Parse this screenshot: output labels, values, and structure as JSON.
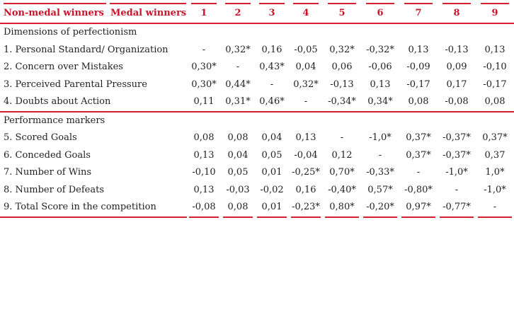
{
  "colors": {
    "header_red": "#c8142b",
    "rule_red": "#d42031",
    "body_text": "#1f1f1f"
  },
  "table": {
    "row_group_header": "Non-medal winners",
    "col_group_header": "Medal winners",
    "columns": [
      "1",
      "2",
      "3",
      "4",
      "5",
      "6",
      "7",
      "8",
      "9"
    ],
    "sections": [
      {
        "title": "Dimensions of perfectionism",
        "rows": [
          {
            "label": "1. Personal Standard/ Organization",
            "values": [
              "-",
              "0,32*",
              "0,16",
              "-0,05",
              "0,32*",
              "-0,32*",
              "0,13",
              "-0,13",
              "0,13"
            ]
          },
          {
            "label": "2. Concern over Mistakes",
            "values": [
              "0,30*",
              "-",
              "0,43*",
              "0,04",
              "0,06",
              "-0,06",
              "-0,09",
              "0,09",
              "-0,10"
            ]
          },
          {
            "label": "3. Perceived Parental Pressure",
            "values": [
              "0,30*",
              "0,44*",
              "-",
              "0,32*",
              "-0,13",
              "0,13",
              "-0,17",
              "0,17",
              "-0,17"
            ]
          },
          {
            "label": "4. Doubts about Action",
            "values": [
              "0,11",
              "0,31*",
              "0,46*",
              "-",
              "-0,34*",
              "0,34*",
              "0,08",
              "-0,08",
              "0,08"
            ]
          }
        ]
      },
      {
        "title": "Performance markers",
        "rows": [
          {
            "label": "5. Scored Goals",
            "values": [
              "0,08",
              "0,08",
              "0,04",
              "0,13",
              "-",
              "-1,0*",
              "0,37*",
              "-0,37*",
              "0,37*"
            ]
          },
          {
            "label": "6. Conceded Goals",
            "values": [
              "0,13",
              "0,04",
              "0,05",
              "-0,04",
              "0,12",
              "-",
              "0,37*",
              "-0,37*",
              "0,37"
            ]
          },
          {
            "label": "7. Number of Wins",
            "values": [
              "-0,10",
              "0,05",
              "0,01",
              "-0,25*",
              "0,70*",
              "-0,33*",
              "-",
              "-1,0*",
              "1,0*"
            ]
          },
          {
            "label": "8. Number of Defeats",
            "values": [
              "0,13",
              "-0,03",
              "-0,02",
              "0,16",
              "-0,40*",
              "0,57*",
              "-0,80*",
              "-",
              "-1,0*"
            ]
          },
          {
            "label": "9. Total Score in the competition",
            "values": [
              "-0,08",
              "0,08",
              "0,01",
              "-0,23*",
              "0,80*",
              "-0,20*",
              "0,97*",
              "-0,77*",
              "-"
            ]
          }
        ]
      }
    ]
  }
}
